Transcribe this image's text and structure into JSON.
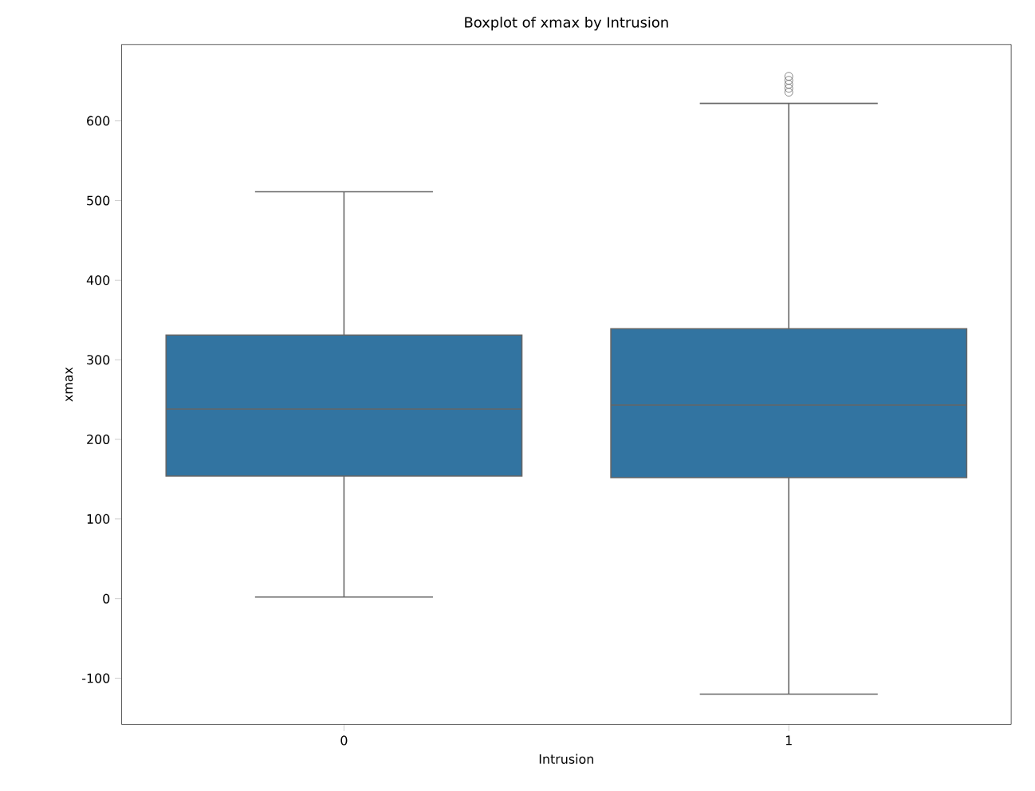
{
  "chart_data": {
    "type": "box",
    "title": "Boxplot of xmax by Intrusion",
    "xlabel": "Intrusion",
    "ylabel": "xmax",
    "categories": [
      "0",
      "1"
    ],
    "color": "#3274a1",
    "boxes": [
      {
        "low": 2,
        "q1": 154,
        "median": 238,
        "q3": 331,
        "high": 511
      },
      {
        "low": -120,
        "q1": 152,
        "median": 243,
        "q3": 339,
        "high": 622,
        "outliers": [
          636,
          641,
          646,
          651,
          656
        ]
      }
    ],
    "ylim": [
      -158,
      696
    ],
    "yticks": [
      -100,
      0,
      100,
      200,
      300,
      400,
      500,
      600
    ],
    "grid": false
  }
}
